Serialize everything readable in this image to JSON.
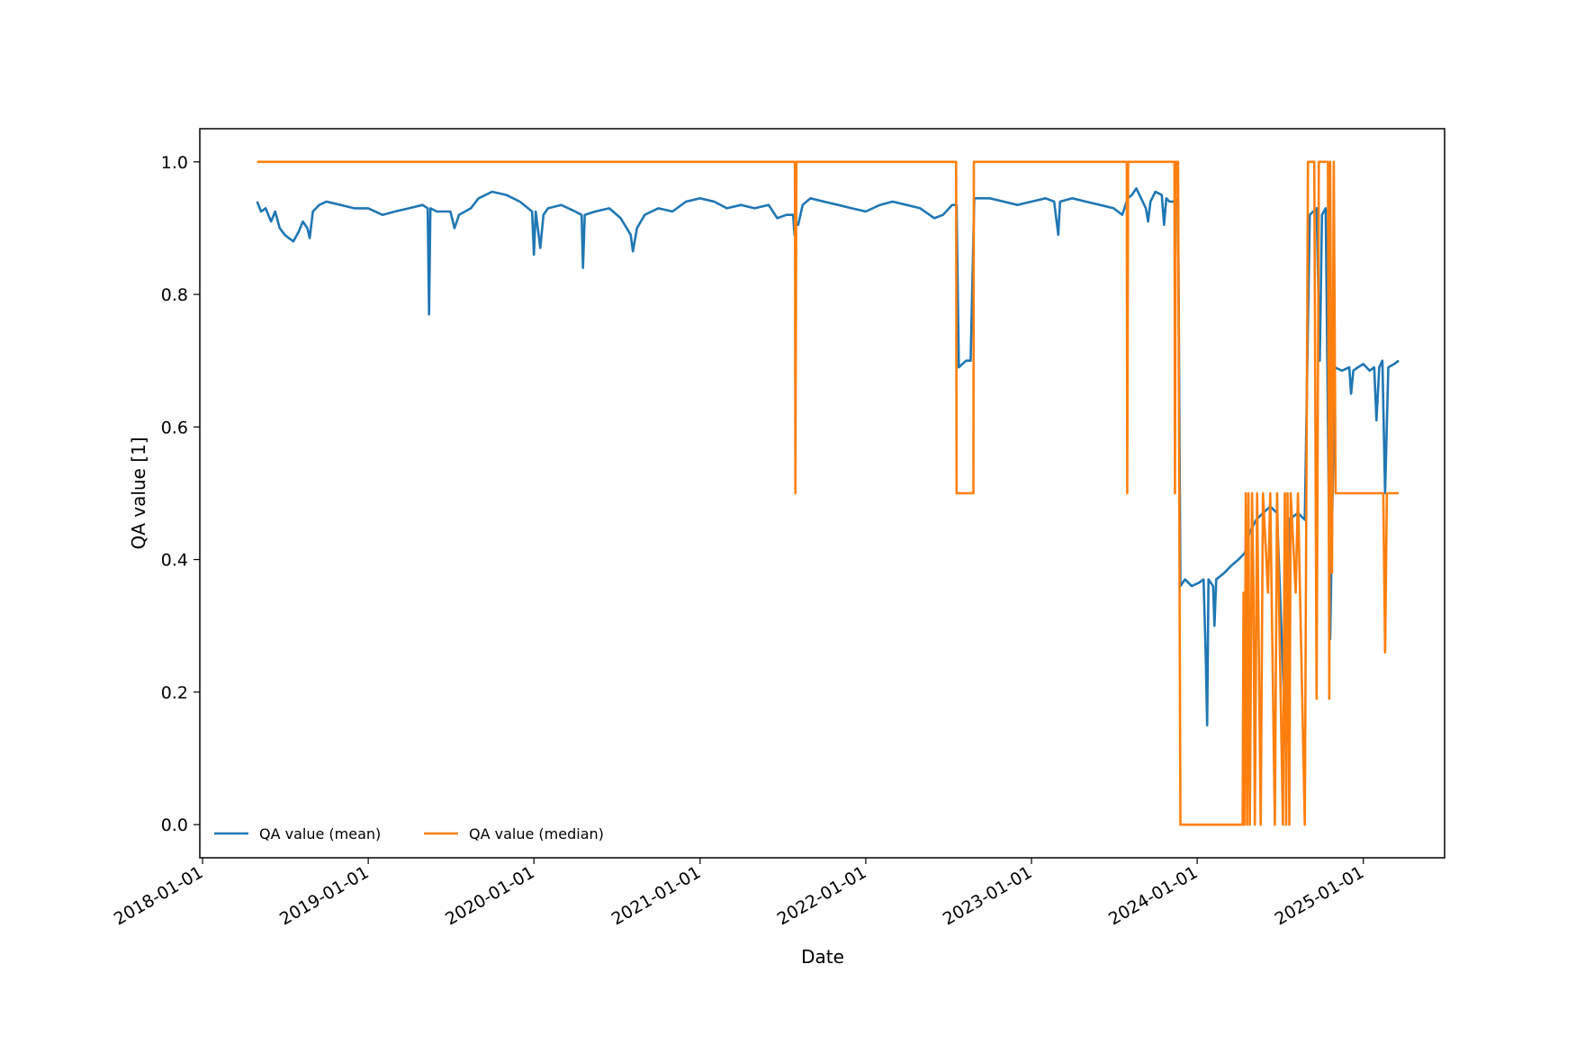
{
  "chart_data": {
    "type": "line",
    "title": "",
    "xlabel": "Date",
    "ylabel": "QA value [1]",
    "xlim": [
      "2017-12-26",
      "2025-06-29"
    ],
    "ylim": [
      -0.05,
      1.05
    ],
    "x_ticks": [
      "2018-01-01",
      "2019-01-01",
      "2020-01-01",
      "2021-01-01",
      "2022-01-01",
      "2023-01-01",
      "2024-01-01",
      "2025-01-01"
    ],
    "y_ticks": [
      "0.0",
      "0.2",
      "0.4",
      "0.6",
      "0.8",
      "1.0"
    ],
    "grid": false,
    "legend": {
      "placement": "lower-left"
    },
    "series": [
      {
        "name": "QA value (mean)",
        "color": "#1f77b4",
        "points": [
          [
            "2018-05-01",
            0.94
          ],
          [
            "2018-05-10",
            0.925
          ],
          [
            "2018-05-20",
            0.93
          ],
          [
            "2018-06-01",
            0.91
          ],
          [
            "2018-06-10",
            0.925
          ],
          [
            "2018-06-20",
            0.9
          ],
          [
            "2018-07-01",
            0.89
          ],
          [
            "2018-07-10",
            0.885
          ],
          [
            "2018-07-20",
            0.88
          ],
          [
            "2018-08-01",
            0.895
          ],
          [
            "2018-08-10",
            0.91
          ],
          [
            "2018-08-20",
            0.9
          ],
          [
            "2018-08-25",
            0.885
          ],
          [
            "2018-09-01",
            0.925
          ],
          [
            "2018-09-15",
            0.935
          ],
          [
            "2018-10-01",
            0.94
          ],
          [
            "2018-11-01",
            0.935
          ],
          [
            "2018-12-01",
            0.93
          ],
          [
            "2019-01-01",
            0.93
          ],
          [
            "2019-02-01",
            0.92
          ],
          [
            "2019-03-01",
            0.925
          ],
          [
            "2019-04-01",
            0.93
          ],
          [
            "2019-05-01",
            0.935
          ],
          [
            "2019-05-12",
            0.93
          ],
          [
            "2019-05-15",
            0.77
          ],
          [
            "2019-05-18",
            0.93
          ],
          [
            "2019-06-01",
            0.925
          ],
          [
            "2019-07-01",
            0.925
          ],
          [
            "2019-07-10",
            0.9
          ],
          [
            "2019-07-20",
            0.92
          ],
          [
            "2019-08-15",
            0.93
          ],
          [
            "2019-09-01",
            0.945
          ],
          [
            "2019-10-01",
            0.955
          ],
          [
            "2019-11-01",
            0.95
          ],
          [
            "2019-12-01",
            0.94
          ],
          [
            "2019-12-28",
            0.925
          ],
          [
            "2020-01-01",
            0.86
          ],
          [
            "2020-01-05",
            0.925
          ],
          [
            "2020-01-15",
            0.87
          ],
          [
            "2020-01-22",
            0.92
          ],
          [
            "2020-02-01",
            0.93
          ],
          [
            "2020-03-01",
            0.935
          ],
          [
            "2020-04-01",
            0.925
          ],
          [
            "2020-04-15",
            0.92
          ],
          [
            "2020-04-18",
            0.84
          ],
          [
            "2020-04-22",
            0.92
          ],
          [
            "2020-05-15",
            0.925
          ],
          [
            "2020-06-15",
            0.93
          ],
          [
            "2020-07-10",
            0.915
          ],
          [
            "2020-08-01",
            0.89
          ],
          [
            "2020-08-06",
            0.865
          ],
          [
            "2020-08-15",
            0.9
          ],
          [
            "2020-09-01",
            0.92
          ],
          [
            "2020-10-01",
            0.93
          ],
          [
            "2020-11-01",
            0.925
          ],
          [
            "2020-12-01",
            0.94
          ],
          [
            "2021-01-01",
            0.945
          ],
          [
            "2021-02-01",
            0.94
          ],
          [
            "2021-03-01",
            0.93
          ],
          [
            "2021-04-01",
            0.935
          ],
          [
            "2021-05-01",
            0.93
          ],
          [
            "2021-06-01",
            0.935
          ],
          [
            "2021-06-20",
            0.915
          ],
          [
            "2021-07-10",
            0.92
          ],
          [
            "2021-07-25",
            0.92
          ],
          [
            "2021-07-28",
            0.89
          ],
          [
            "2021-07-30",
            0.91
          ],
          [
            "2021-08-05",
            0.905
          ],
          [
            "2021-08-15",
            0.935
          ],
          [
            "2021-09-01",
            0.945
          ],
          [
            "2021-10-01",
            0.94
          ],
          [
            "2021-11-01",
            0.935
          ],
          [
            "2021-12-01",
            0.93
          ],
          [
            "2022-01-01",
            0.925
          ],
          [
            "2022-02-01",
            0.935
          ],
          [
            "2022-03-01",
            0.94
          ],
          [
            "2022-04-01",
            0.935
          ],
          [
            "2022-05-01",
            0.93
          ],
          [
            "2022-06-01",
            0.915
          ],
          [
            "2022-06-20",
            0.92
          ],
          [
            "2022-07-10",
            0.935
          ],
          [
            "2022-07-20",
            0.935
          ],
          [
            "2022-07-25",
            0.69
          ],
          [
            "2022-08-10",
            0.7
          ],
          [
            "2022-08-20",
            0.7
          ],
          [
            "2022-08-28",
            0.945
          ],
          [
            "2022-10-01",
            0.945
          ],
          [
            "2022-11-01",
            0.94
          ],
          [
            "2022-12-01",
            0.935
          ],
          [
            "2023-01-01",
            0.94
          ],
          [
            "2023-02-01",
            0.945
          ],
          [
            "2023-02-20",
            0.94
          ],
          [
            "2023-03-01",
            0.89
          ],
          [
            "2023-03-05",
            0.94
          ],
          [
            "2023-04-01",
            0.945
          ],
          [
            "2023-05-01",
            0.94
          ],
          [
            "2023-06-01",
            0.935
          ],
          [
            "2023-07-01",
            0.93
          ],
          [
            "2023-07-20",
            0.92
          ],
          [
            "2023-08-01",
            0.945
          ],
          [
            "2023-08-10",
            0.95
          ],
          [
            "2023-08-20",
            0.96
          ],
          [
            "2023-09-10",
            0.93
          ],
          [
            "2023-09-15",
            0.91
          ],
          [
            "2023-09-20",
            0.94
          ],
          [
            "2023-10-01",
            0.955
          ],
          [
            "2023-10-15",
            0.95
          ],
          [
            "2023-10-20",
            0.905
          ],
          [
            "2023-10-25",
            0.945
          ],
          [
            "2023-11-01",
            0.94
          ],
          [
            "2023-11-10",
            0.94
          ],
          [
            "2023-11-15",
            0.945
          ],
          [
            "2023-11-20",
            0.94
          ],
          [
            "2023-11-25",
            0.36
          ],
          [
            "2023-12-05",
            0.37
          ],
          [
            "2023-12-20",
            0.36
          ],
          [
            "2024-01-05",
            0.365
          ],
          [
            "2024-01-15",
            0.37
          ],
          [
            "2024-01-20",
            0.25
          ],
          [
            "2024-01-23",
            0.15
          ],
          [
            "2024-01-26",
            0.37
          ],
          [
            "2024-02-05",
            0.36
          ],
          [
            "2024-02-08",
            0.3
          ],
          [
            "2024-02-12",
            0.37
          ],
          [
            "2024-03-01",
            0.38
          ],
          [
            "2024-03-15",
            0.39
          ],
          [
            "2024-04-01",
            0.4
          ],
          [
            "2024-04-15",
            0.41
          ],
          [
            "2024-04-25",
            0.44
          ],
          [
            "2024-05-10",
            0.46
          ],
          [
            "2024-05-25",
            0.47
          ],
          [
            "2024-06-10",
            0.48
          ],
          [
            "2024-06-25",
            0.47
          ],
          [
            "2024-07-15",
            0.1
          ],
          [
            "2024-07-20",
            0.46
          ],
          [
            "2024-08-10",
            0.47
          ],
          [
            "2024-08-25",
            0.46
          ],
          [
            "2024-09-05",
            0.92
          ],
          [
            "2024-09-20",
            0.93
          ],
          [
            "2024-09-27",
            0.7
          ],
          [
            "2024-10-02",
            0.92
          ],
          [
            "2024-10-10",
            0.93
          ],
          [
            "2024-10-20",
            0.28
          ],
          [
            "2024-10-30",
            0.69
          ],
          [
            "2024-11-15",
            0.685
          ],
          [
            "2024-12-01",
            0.69
          ],
          [
            "2024-12-05",
            0.65
          ],
          [
            "2024-12-10",
            0.685
          ],
          [
            "2024-12-20",
            0.69
          ],
          [
            "2025-01-01",
            0.695
          ],
          [
            "2025-01-15",
            0.685
          ],
          [
            "2025-01-25",
            0.69
          ],
          [
            "2025-01-30",
            0.61
          ],
          [
            "2025-02-05",
            0.69
          ],
          [
            "2025-02-12",
            0.7
          ],
          [
            "2025-02-18",
            0.5
          ],
          [
            "2025-02-25",
            0.69
          ],
          [
            "2025-03-10",
            0.695
          ],
          [
            "2025-03-20",
            0.7
          ]
        ]
      },
      {
        "name": "QA value (median)",
        "color": "#ff7f0e",
        "points": [
          [
            "2018-05-01",
            1.0
          ],
          [
            "2021-07-29",
            1.0
          ],
          [
            "2021-07-30",
            0.5
          ],
          [
            "2021-08-01",
            1.0
          ],
          [
            "2022-07-19",
            1.0
          ],
          [
            "2022-07-20",
            0.5
          ],
          [
            "2022-08-26",
            0.5
          ],
          [
            "2022-08-27",
            1.0
          ],
          [
            "2023-07-30",
            1.0
          ],
          [
            "2023-07-31",
            0.5
          ],
          [
            "2023-08-02",
            1.0
          ],
          [
            "2023-11-12",
            1.0
          ],
          [
            "2023-11-13",
            0.5
          ],
          [
            "2023-11-15",
            1.0
          ],
          [
            "2023-11-20",
            1.0
          ],
          [
            "2023-11-25",
            0.0
          ],
          [
            "2024-04-10",
            0.0
          ],
          [
            "2024-04-12",
            0.35
          ],
          [
            "2024-04-14",
            0.0
          ],
          [
            "2024-04-17",
            0.5
          ],
          [
            "2024-04-20",
            0.0
          ],
          [
            "2024-04-23",
            0.5
          ],
          [
            "2024-04-26",
            0.0
          ],
          [
            "2024-05-01",
            0.5
          ],
          [
            "2024-05-04",
            0.35
          ],
          [
            "2024-05-07",
            0.0
          ],
          [
            "2024-05-12",
            0.5
          ],
          [
            "2024-05-20",
            0.0
          ],
          [
            "2024-05-25",
            0.5
          ],
          [
            "2024-06-05",
            0.35
          ],
          [
            "2024-06-10",
            0.5
          ],
          [
            "2024-06-20",
            0.0
          ],
          [
            "2024-06-25",
            0.5
          ],
          [
            "2024-07-08",
            0.0
          ],
          [
            "2024-07-12",
            0.5
          ],
          [
            "2024-07-15",
            0.0
          ],
          [
            "2024-07-18",
            0.5
          ],
          [
            "2024-07-22",
            0.0
          ],
          [
            "2024-07-25",
            0.5
          ],
          [
            "2024-08-05",
            0.35
          ],
          [
            "2024-08-10",
            0.5
          ],
          [
            "2024-08-25",
            0.0
          ],
          [
            "2024-09-01",
            1.0
          ],
          [
            "2024-09-15",
            1.0
          ],
          [
            "2024-09-20",
            0.19
          ],
          [
            "2024-09-25",
            1.0
          ],
          [
            "2024-10-15",
            1.0
          ],
          [
            "2024-10-18",
            0.19
          ],
          [
            "2024-10-20",
            1.0
          ],
          [
            "2024-10-24",
            0.38
          ],
          [
            "2024-10-28",
            1.0
          ],
          [
            "2024-11-01",
            0.5
          ],
          [
            "2025-02-14",
            0.5
          ],
          [
            "2025-02-18",
            0.26
          ],
          [
            "2025-02-22",
            0.5
          ],
          [
            "2025-03-20",
            0.5
          ]
        ]
      }
    ]
  }
}
